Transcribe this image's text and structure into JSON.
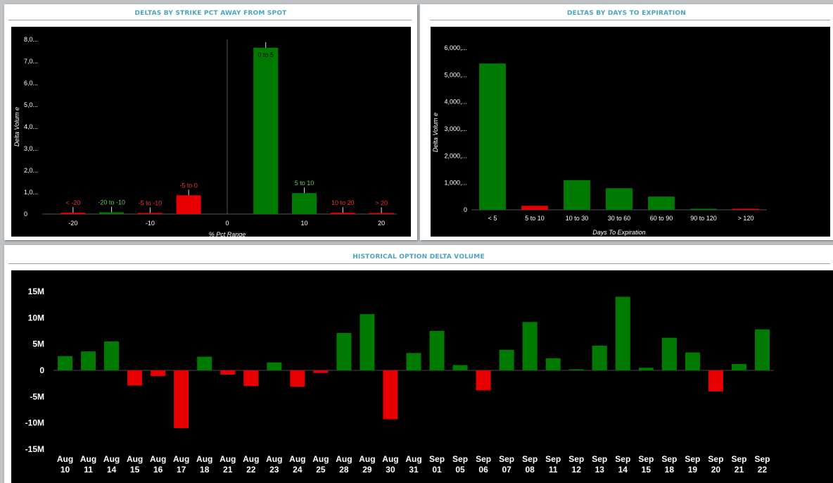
{
  "colors": {
    "positive": "#007a00",
    "negative": "#e80000",
    "title": "#4aa3c2"
  },
  "chart_data": [
    {
      "type": "bar",
      "title": "DELTAS BY STRIKE PCT AWAY FROM SPOT",
      "xlabel": "% Pct Range",
      "ylabel": "Delta Volum e",
      "x_ticks": [
        "-20",
        "-10",
        "0",
        "10",
        "20"
      ],
      "x_tick_values": [
        -20,
        -10,
        0,
        10,
        20
      ],
      "y_ticks": [
        "0",
        "1,0...",
        "2,0...",
        "3,0...",
        "4,0...",
        "5,0...",
        "6,0...",
        "7,0...",
        "8,0..."
      ],
      "y_tick_values": [
        0,
        1000,
        2000,
        3000,
        4000,
        5000,
        6000,
        7000,
        8000
      ],
      "xlim": [
        -24,
        22
      ],
      "ylim": [
        0,
        8000
      ],
      "bars": [
        {
          "label": "< -20",
          "x": -20,
          "value": 60,
          "color": "negative"
        },
        {
          "label": "-20 to -10",
          "x": -15,
          "value": 80,
          "color": "positive"
        },
        {
          "label": "-5 to -10",
          "x": -10,
          "value": 20,
          "color": "negative"
        },
        {
          "label": "-5 to 0",
          "x": -5,
          "value": 860,
          "color": "negative"
        },
        {
          "label": "0 to 5",
          "x": 5,
          "value": 7620,
          "color": "positive",
          "label_inside": true
        },
        {
          "label": "5 to 10",
          "x": 10,
          "value": 960,
          "color": "positive"
        },
        {
          "label": "10 to 20",
          "x": 15,
          "value": 60,
          "color": "negative"
        },
        {
          "label": "> 20",
          "x": 20,
          "value": 30,
          "color": "negative"
        }
      ]
    },
    {
      "type": "bar",
      "title": "DELTAS BY DAYS TO EXPIRATION",
      "xlabel": "Days To Expiration",
      "ylabel": "Delta Volum e",
      "categories": [
        "< 5",
        "5 to 10",
        "10 to 30",
        "30 to 60",
        "60 to 90",
        "90 to 120",
        "> 120"
      ],
      "values": [
        5420,
        150,
        1100,
        800,
        490,
        40,
        20
      ],
      "colors": [
        "positive",
        "negative",
        "positive",
        "positive",
        "positive",
        "positive",
        "negative"
      ],
      "y_ticks": [
        "0",
        "1,000,...",
        "2,000,...",
        "3,000,...",
        "4,000,...",
        "5,000,...",
        "6,000,..."
      ],
      "y_tick_values": [
        0,
        1000,
        2000,
        3000,
        4000,
        5000,
        6000
      ],
      "ylim": [
        0,
        6000
      ]
    },
    {
      "type": "bar",
      "title": "HISTORICAL OPTION DELTA VOLUME",
      "categories": [
        [
          "Aug",
          "10"
        ],
        [
          "Aug",
          "11"
        ],
        [
          "Aug",
          "14"
        ],
        [
          "Aug",
          "15"
        ],
        [
          "Aug",
          "16"
        ],
        [
          "Aug",
          "17"
        ],
        [
          "Aug",
          "18"
        ],
        [
          "Aug",
          "21"
        ],
        [
          "Aug",
          "22"
        ],
        [
          "Aug",
          "23"
        ],
        [
          "Aug",
          "24"
        ],
        [
          "Aug",
          "25"
        ],
        [
          "Aug",
          "28"
        ],
        [
          "Aug",
          "29"
        ],
        [
          "Aug",
          "30"
        ],
        [
          "Aug",
          "31"
        ],
        [
          "Sep",
          "01"
        ],
        [
          "Sep",
          "05"
        ],
        [
          "Sep",
          "06"
        ],
        [
          "Sep",
          "07"
        ],
        [
          "Sep",
          "08"
        ],
        [
          "Sep",
          "11"
        ],
        [
          "Sep",
          "12"
        ],
        [
          "Sep",
          "13"
        ],
        [
          "Sep",
          "14"
        ],
        [
          "Sep",
          "15"
        ],
        [
          "Sep",
          "18"
        ],
        [
          "Sep",
          "19"
        ],
        [
          "Sep",
          "20"
        ],
        [
          "Sep",
          "21"
        ],
        [
          "Sep",
          "22"
        ]
      ],
      "values": [
        2.7,
        3.6,
        5.5,
        -2.9,
        -1.1,
        -11.0,
        2.6,
        -0.8,
        -3.0,
        1.5,
        -3.1,
        -0.5,
        7.1,
        10.7,
        -9.3,
        3.3,
        7.5,
        1.0,
        -3.8,
        3.9,
        9.2,
        2.3,
        0.2,
        4.7,
        14.0,
        0.5,
        6.2,
        3.4,
        -4.0,
        1.2,
        7.8
      ],
      "value_unit": "M",
      "y_ticks": [
        "-15M",
        "-10M",
        "-5M",
        "0",
        "5M",
        "10M",
        "15M"
      ],
      "y_tick_values": [
        -15,
        -10,
        -5,
        0,
        5,
        10,
        15
      ],
      "ylim": [
        -15,
        15
      ]
    }
  ]
}
